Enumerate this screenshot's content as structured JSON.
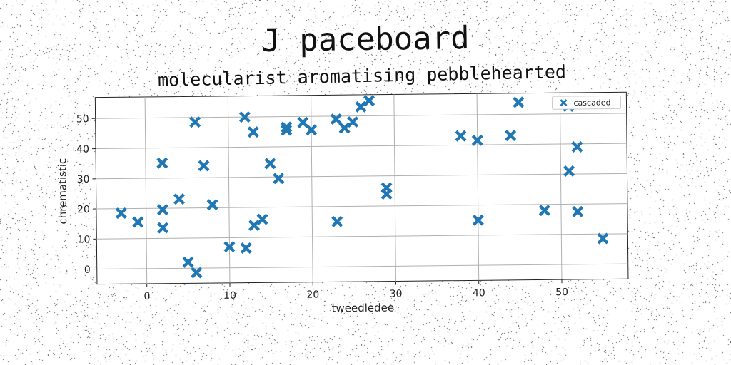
{
  "chart_data": {
    "type": "scatter",
    "title": "J paceboard",
    "subtitle": "molecularist aromatising pebblehearted",
    "xlabel": "tweedledee",
    "ylabel": "chrematistic",
    "xlim": [
      -6,
      58
    ],
    "ylim": [
      -5,
      57
    ],
    "xticks": [
      0,
      10,
      20,
      30,
      40,
      50
    ],
    "yticks": [
      0,
      10,
      20,
      30,
      40,
      50
    ],
    "grid": true,
    "legend_position": "top-right",
    "colors": {
      "marker": "#1f77b4",
      "grid": "#b0b0b0",
      "axes": "#222222"
    },
    "series": [
      {
        "name": "cascaded",
        "marker": "x-filled",
        "points": [
          [
            -3,
            18.5
          ],
          [
            -1,
            15.5
          ],
          [
            2,
            35
          ],
          [
            2,
            19.5
          ],
          [
            2,
            13.5
          ],
          [
            4,
            23
          ],
          [
            5,
            2
          ],
          [
            6,
            -1.5
          ],
          [
            6,
            48.5
          ],
          [
            7,
            34
          ],
          [
            8,
            21
          ],
          [
            10,
            7
          ],
          [
            12,
            6.5
          ],
          [
            12,
            50
          ],
          [
            13,
            14
          ],
          [
            13,
            45
          ],
          [
            14,
            16
          ],
          [
            15,
            34.5
          ],
          [
            16,
            29.5
          ],
          [
            17,
            45.5
          ],
          [
            17,
            46.5
          ],
          [
            19,
            48
          ],
          [
            20,
            45.5
          ],
          [
            23,
            49
          ],
          [
            23,
            15
          ],
          [
            24,
            46
          ],
          [
            25,
            48
          ],
          [
            26,
            53
          ],
          [
            27,
            55
          ],
          [
            29,
            24
          ],
          [
            29,
            26
          ],
          [
            38,
            43
          ],
          [
            40,
            41.5
          ],
          [
            40,
            15
          ],
          [
            44,
            43
          ],
          [
            45,
            54
          ],
          [
            48,
            18
          ],
          [
            51,
            52.5
          ],
          [
            51,
            31
          ],
          [
            52,
            39
          ],
          [
            52,
            17.5
          ],
          [
            55,
            8.5
          ]
        ]
      }
    ]
  }
}
